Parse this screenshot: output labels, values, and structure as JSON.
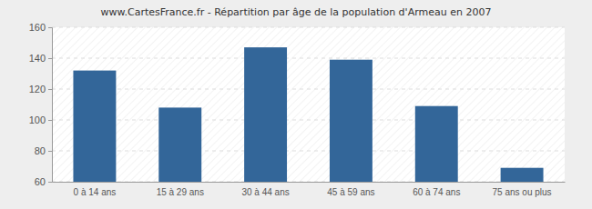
{
  "chart_data": {
    "type": "bar",
    "title": "www.CartesFrance.fr - Répartition par âge de la population d'Armeau en 2007",
    "categories": [
      "0 à 14 ans",
      "15 à 29 ans",
      "30 à 44 ans",
      "45 à 59 ans",
      "60 à 74 ans",
      "75 ans ou plus"
    ],
    "values": [
      132,
      108,
      147,
      139,
      109,
      69
    ],
    "color": "#336699",
    "ylim": [
      60,
      160
    ],
    "yticks": [
      60,
      80,
      100,
      120,
      140,
      160
    ],
    "grid": true
  }
}
